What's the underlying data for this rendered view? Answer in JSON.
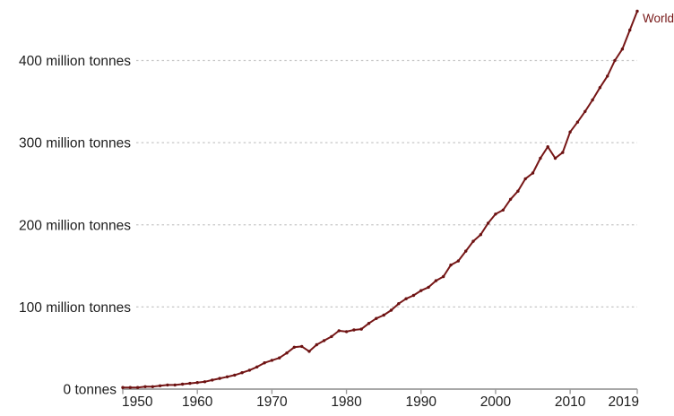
{
  "chart_data": {
    "type": "line",
    "title": "",
    "xlabel": "",
    "ylabel": "",
    "xlim": [
      1950,
      2019
    ],
    "ylim": [
      0,
      475
    ],
    "grid": "horizontal-dashed",
    "legend": "inline-end-label",
    "xticks": [
      1950,
      1960,
      1970,
      1980,
      1990,
      2000,
      2010,
      2019
    ],
    "yticks": [
      0,
      100,
      200,
      300,
      400
    ],
    "ytick_labels": [
      "0 tonnes",
      "100 million tonnes",
      "200 million tonnes",
      "300 million tonnes",
      "400 million tonnes"
    ],
    "series": [
      {
        "name": "World",
        "color": "#771717",
        "x": [
          1950,
          1951,
          1952,
          1953,
          1954,
          1955,
          1956,
          1957,
          1958,
          1959,
          1960,
          1961,
          1962,
          1963,
          1964,
          1965,
          1966,
          1967,
          1968,
          1969,
          1970,
          1971,
          1972,
          1973,
          1974,
          1975,
          1976,
          1977,
          1978,
          1979,
          1980,
          1981,
          1982,
          1983,
          1984,
          1985,
          1986,
          1987,
          1988,
          1989,
          1990,
          1991,
          1992,
          1993,
          1994,
          1995,
          1996,
          1997,
          1998,
          1999,
          2000,
          2001,
          2002,
          2003,
          2004,
          2005,
          2006,
          2007,
          2008,
          2009,
          2010,
          2011,
          2012,
          2013,
          2014,
          2015,
          2016,
          2017,
          2018,
          2019
        ],
        "values": [
          2,
          2,
          2,
          3,
          3,
          4,
          5,
          5,
          6,
          7,
          8,
          9,
          11,
          13,
          15,
          17,
          20,
          23,
          27,
          32,
          35,
          38,
          44,
          51,
          52,
          46,
          54,
          59,
          64,
          71,
          70,
          72,
          73,
          80,
          86,
          90,
          96,
          104,
          110,
          114,
          120,
          124,
          132,
          137,
          151,
          156,
          168,
          180,
          188,
          202,
          213,
          218,
          231,
          241,
          256,
          263,
          281,
          295,
          281,
          288,
          313,
          325,
          338,
          352,
          367,
          381,
          400,
          414,
          437,
          460
        ]
      }
    ]
  },
  "colors": {
    "series_line": "#771717",
    "marker": "#6b1212",
    "axis": "#9b9b9b",
    "gridline": "#c6c6c6",
    "tick_text": "#1d1d1d",
    "background": "#ffffff"
  },
  "labels": {
    "entity_label": "World",
    "unit_zero": "tonnes",
    "unit": "million tonnes"
  }
}
